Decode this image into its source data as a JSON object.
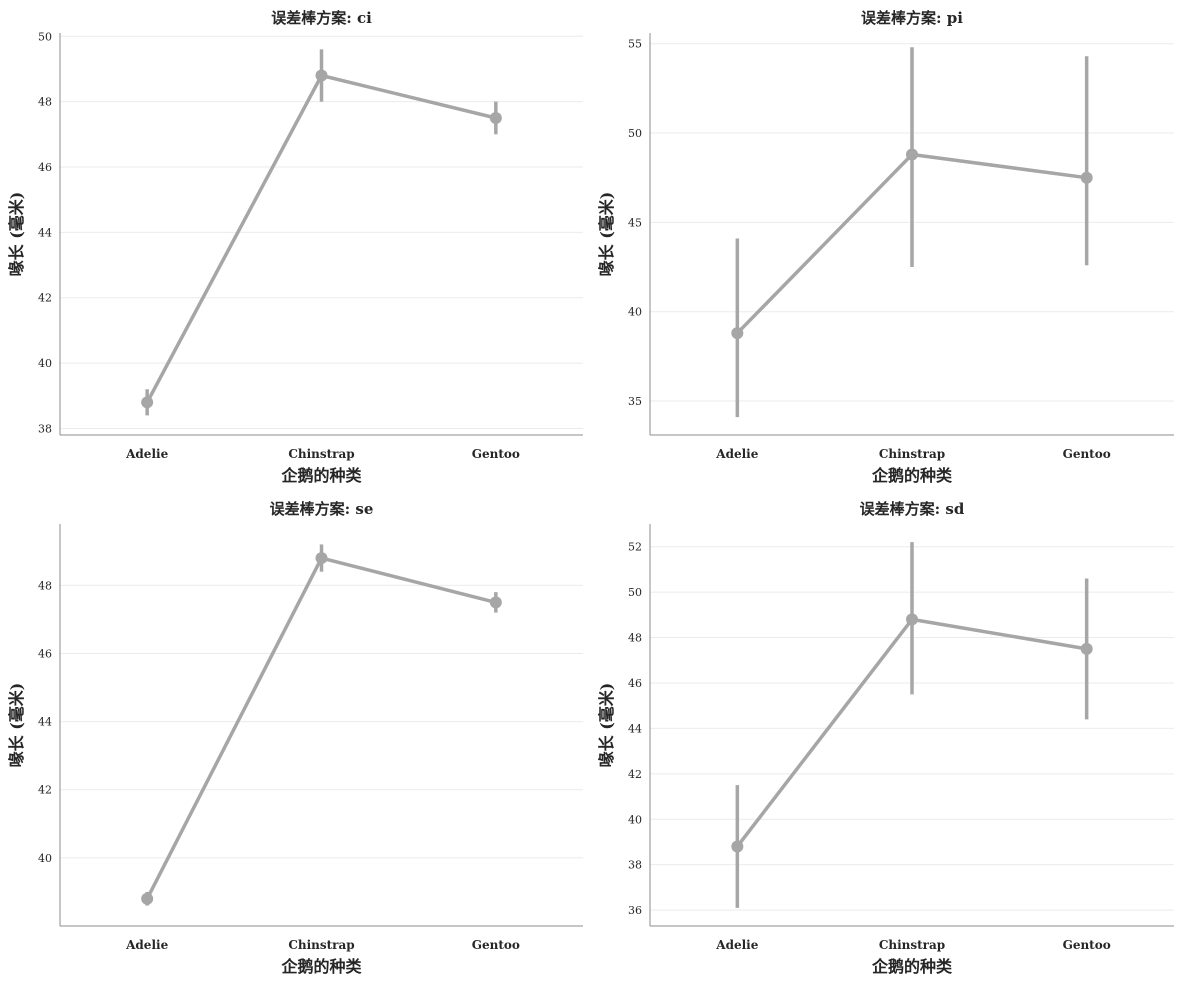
{
  "colors": {
    "series": "#a6a6a6"
  },
  "chart_data": [
    {
      "type": "line",
      "title": "误差棒方案: ci",
      "xlabel": "企鹅的种类",
      "ylabel": "喙长 (毫米)",
      "categories": [
        "Adelie",
        "Chinstrap",
        "Gentoo"
      ],
      "values": [
        38.8,
        48.8,
        47.5
      ],
      "err_low": [
        38.4,
        48.0,
        47.0
      ],
      "err_high": [
        39.2,
        49.6,
        48.0
      ],
      "ylim": [
        37.8,
        50.1
      ],
      "yticks": [
        38,
        40,
        42,
        44,
        46,
        48,
        50
      ],
      "grid": true
    },
    {
      "type": "line",
      "title": "误差棒方案: pi",
      "xlabel": "企鹅的种类",
      "ylabel": "喙长 (毫米)",
      "categories": [
        "Adelie",
        "Chinstrap",
        "Gentoo"
      ],
      "values": [
        38.8,
        48.8,
        47.5
      ],
      "err_low": [
        34.1,
        42.5,
        42.6
      ],
      "err_high": [
        44.1,
        54.8,
        54.3
      ],
      "ylim": [
        33.1,
        55.6
      ],
      "yticks": [
        35,
        40,
        45,
        50,
        55
      ],
      "grid": true
    },
    {
      "type": "line",
      "title": "误差棒方案: se",
      "xlabel": "企鹅的种类",
      "ylabel": "喙长 (毫米)",
      "categories": [
        "Adelie",
        "Chinstrap",
        "Gentoo"
      ],
      "values": [
        38.8,
        48.8,
        47.5
      ],
      "err_low": [
        38.6,
        48.4,
        47.2
      ],
      "err_high": [
        39.0,
        49.2,
        47.8
      ],
      "ylim": [
        38.0,
        49.8
      ],
      "yticks": [
        40,
        42,
        44,
        46,
        48
      ],
      "grid": true
    },
    {
      "type": "line",
      "title": "误差棒方案: sd",
      "xlabel": "企鹅的种类",
      "ylabel": "喙长 (毫米)",
      "categories": [
        "Adelie",
        "Chinstrap",
        "Gentoo"
      ],
      "values": [
        38.8,
        48.8,
        47.5
      ],
      "err_low": [
        36.1,
        45.5,
        44.4
      ],
      "err_high": [
        41.5,
        52.2,
        50.6
      ],
      "ylim": [
        35.3,
        53.0
      ],
      "yticks": [
        36,
        38,
        40,
        42,
        44,
        46,
        48,
        50,
        52
      ],
      "grid": true
    }
  ]
}
